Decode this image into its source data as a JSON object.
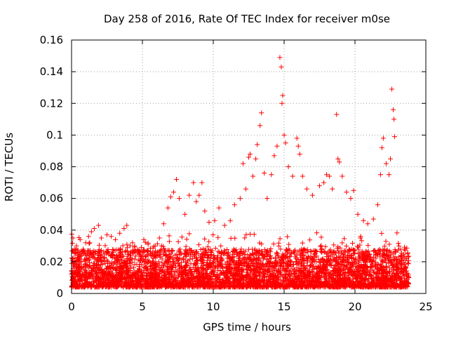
{
  "chart_data": {
    "type": "scatter",
    "title": "Day 258 of 2016, Rate Of TEC Index for receiver m0se",
    "xlabel": "GPS time / hours",
    "ylabel": "ROTI / TECUs",
    "xlim": [
      0,
      25
    ],
    "ylim": [
      0,
      0.16
    ],
    "x_ticks": [
      0,
      5,
      10,
      15,
      20,
      25
    ],
    "x_tick_labels": [
      "0",
      "5",
      "10",
      "15",
      "20",
      "25"
    ],
    "y_ticks": [
      0,
      0.02,
      0.04,
      0.06,
      0.08,
      0.1,
      0.12,
      0.14,
      0.16
    ],
    "y_tick_labels": [
      "0",
      "0.02",
      "0.04",
      "0.06",
      "0.08",
      "0.1",
      "0.12",
      "0.14",
      "0.16"
    ],
    "grid": true,
    "marker": "+",
    "color": "#ff0000",
    "series": [
      {
        "name": "ROTI",
        "note": "dense band of several thousand points roughly 0.005–0.03 TECUs across 0–23.8 h; representative values listed",
        "points": [
          [
            0.1,
            0.035
          ],
          [
            0.2,
            0.028
          ],
          [
            0.3,
            0.026
          ],
          [
            0.5,
            0.022
          ],
          [
            0.7,
            0.02
          ],
          [
            1.0,
            0.032
          ],
          [
            1.2,
            0.036
          ],
          [
            1.4,
            0.039
          ],
          [
            1.6,
            0.041
          ],
          [
            1.9,
            0.043
          ],
          [
            2.1,
            0.035
          ],
          [
            2.5,
            0.037
          ],
          [
            2.8,
            0.036
          ],
          [
            3.1,
            0.034
          ],
          [
            3.4,
            0.038
          ],
          [
            3.7,
            0.041
          ],
          [
            3.9,
            0.043
          ],
          [
            4.3,
            0.032
          ],
          [
            4.8,
            0.026
          ],
          [
            5.1,
            0.034
          ],
          [
            5.4,
            0.031
          ],
          [
            5.9,
            0.03
          ],
          [
            6.2,
            0.035
          ],
          [
            6.5,
            0.044
          ],
          [
            6.8,
            0.054
          ],
          [
            7.0,
            0.061
          ],
          [
            7.2,
            0.064
          ],
          [
            7.4,
            0.072
          ],
          [
            7.6,
            0.06
          ],
          [
            8.0,
            0.05
          ],
          [
            8.3,
            0.062
          ],
          [
            8.6,
            0.07
          ],
          [
            8.8,
            0.058
          ],
          [
            9.0,
            0.062
          ],
          [
            9.2,
            0.07
          ],
          [
            9.4,
            0.052
          ],
          [
            9.7,
            0.045
          ],
          [
            10.1,
            0.046
          ],
          [
            10.4,
            0.054
          ],
          [
            10.8,
            0.043
          ],
          [
            11.2,
            0.046
          ],
          [
            11.5,
            0.056
          ],
          [
            11.9,
            0.06
          ],
          [
            12.1,
            0.082
          ],
          [
            12.3,
            0.066
          ],
          [
            12.5,
            0.086
          ],
          [
            12.6,
            0.088
          ],
          [
            12.8,
            0.074
          ],
          [
            13.0,
            0.085
          ],
          [
            13.1,
            0.094
          ],
          [
            13.3,
            0.106
          ],
          [
            13.4,
            0.114
          ],
          [
            13.6,
            0.076
          ],
          [
            13.8,
            0.06
          ],
          [
            14.1,
            0.075
          ],
          [
            14.3,
            0.087
          ],
          [
            14.5,
            0.093
          ],
          [
            14.7,
            0.149
          ],
          [
            14.8,
            0.143
          ],
          [
            14.85,
            0.12
          ],
          [
            14.9,
            0.125
          ],
          [
            15.0,
            0.1
          ],
          [
            15.1,
            0.095
          ],
          [
            15.3,
            0.08
          ],
          [
            15.6,
            0.074
          ],
          [
            15.9,
            0.098
          ],
          [
            16.0,
            0.093
          ],
          [
            16.1,
            0.088
          ],
          [
            16.3,
            0.074
          ],
          [
            16.6,
            0.066
          ],
          [
            17.0,
            0.062
          ],
          [
            17.5,
            0.068
          ],
          [
            17.8,
            0.07
          ],
          [
            18.0,
            0.075
          ],
          [
            18.2,
            0.074
          ],
          [
            18.4,
            0.066
          ],
          [
            18.7,
            0.113
          ],
          [
            18.8,
            0.085
          ],
          [
            18.9,
            0.083
          ],
          [
            19.1,
            0.074
          ],
          [
            19.4,
            0.064
          ],
          [
            19.7,
            0.06
          ],
          [
            19.9,
            0.065
          ],
          [
            20.2,
            0.05
          ],
          [
            20.6,
            0.046
          ],
          [
            20.9,
            0.044
          ],
          [
            21.3,
            0.047
          ],
          [
            21.6,
            0.056
          ],
          [
            21.8,
            0.075
          ],
          [
            21.9,
            0.092
          ],
          [
            22.0,
            0.098
          ],
          [
            22.2,
            0.082
          ],
          [
            22.4,
            0.075
          ],
          [
            22.5,
            0.085
          ],
          [
            22.6,
            0.129
          ],
          [
            22.7,
            0.116
          ],
          [
            22.75,
            0.11
          ],
          [
            22.8,
            0.099
          ],
          [
            23.1,
            0.03
          ],
          [
            23.5,
            0.028
          ]
        ]
      }
    ]
  },
  "colors": {
    "marker": "#ff0000",
    "grid": "#a0a0a0",
    "axis": "#000000"
  }
}
